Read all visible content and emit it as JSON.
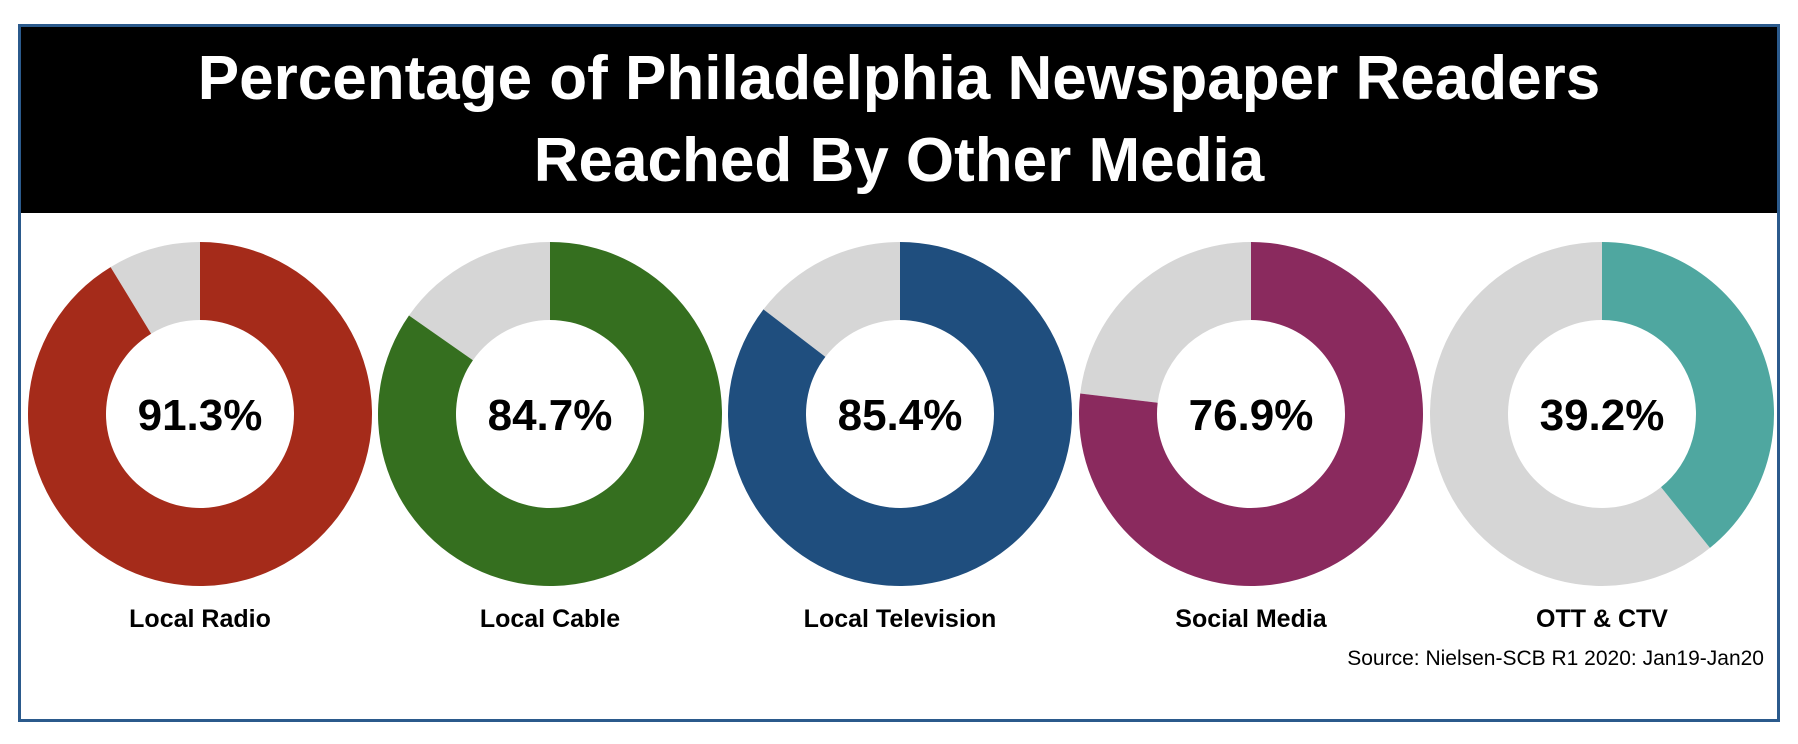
{
  "title_line1": "Percentage of Philadelphia Newspaper Readers",
  "title_line2": "Reached By Other Media",
  "source": "Source: Nielsen-SCB R1 2020: Jan19-Jan20",
  "colors": {
    "remainder": "#d6d6d6",
    "frame": "#2b5a8c"
  },
  "chart_data": {
    "type": "pie",
    "title": "Percentage of Philadelphia Newspaper Readers Reached By Other Media",
    "categories": [
      "Local Radio",
      "Local Cable",
      "Local Television",
      "Social Media",
      "OTT & CTV"
    ],
    "values": [
      91.3,
      84.7,
      85.4,
      76.9,
      39.2
    ],
    "value_labels": [
      "91.3%",
      "84.7%",
      "85.4%",
      "76.9%",
      "39.2%"
    ],
    "series_colors": [
      "#a52b1a",
      "#356f1f",
      "#1f4e7e",
      "#8a2a5e",
      "#4fa7a0"
    ]
  }
}
